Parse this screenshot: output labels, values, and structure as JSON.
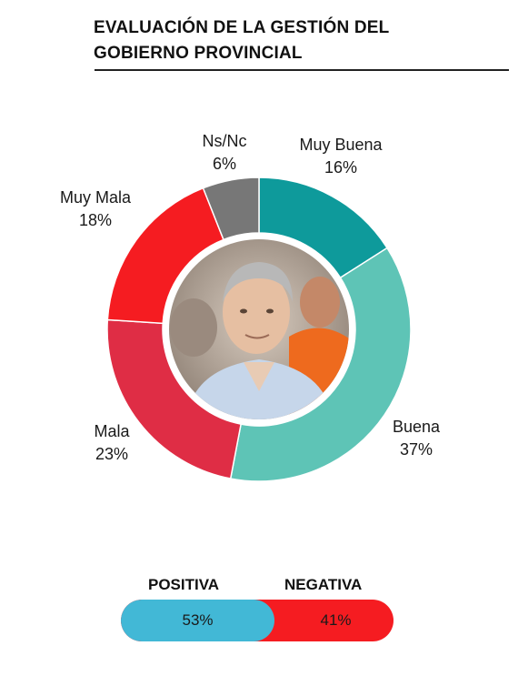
{
  "title": {
    "line1": "EVALUACIÓN DE LA GESTIÓN DEL",
    "line2": "GOBIERNO PROVINCIAL"
  },
  "chart_data": {
    "type": "donut",
    "slices": [
      {
        "label": "Muy Buena",
        "value": 16,
        "value_label": "16%",
        "color": "#0e9a9b"
      },
      {
        "label": "Buena",
        "value": 37,
        "value_label": "37%",
        "color": "#5ec4b6"
      },
      {
        "label": "Mala",
        "value": 23,
        "value_label": "23%",
        "color": "#df2d45"
      },
      {
        "label": "Muy Mala",
        "value": 18,
        "value_label": "18%",
        "color": "#f51c21"
      },
      {
        "label": "Ns/Nc",
        "value": 6,
        "value_label": "6%",
        "color": "#777777"
      }
    ],
    "center_image": "portrait-photo"
  },
  "summary": {
    "positive": {
      "label": "POSITIVA",
      "value": 53,
      "value_label": "53%",
      "color": "#42b8d6"
    },
    "negative": {
      "label": "NEGATIVA",
      "value": 41,
      "value_label": "41%",
      "color": "#f51c21"
    }
  }
}
